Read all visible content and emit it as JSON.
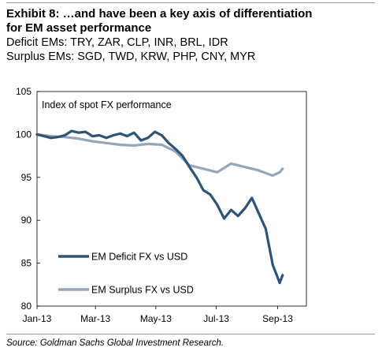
{
  "header": {
    "title_line1": "Exhibit 8: …and have been a key axis of differentiation",
    "title_line2": "for EM asset performance",
    "subtitle_line1": "Deficit EMs: TRY, ZAR, CLP, INR, BRL, IDR",
    "subtitle_line2": "Surplus EMs: SGD, TWD, KRW, PHP, CNY, MYR"
  },
  "footer": {
    "source": "Source: Goldman Sachs Global Investment Research."
  },
  "chart_data": {
    "type": "line",
    "title": "Index of spot FX performance",
    "xlabel": "",
    "ylabel": "",
    "ylim": [
      80,
      105
    ],
    "yticks": [
      80,
      85,
      90,
      95,
      100,
      105
    ],
    "xlim": [
      "2013-01-01",
      "2013-09-30"
    ],
    "xticks": [
      "2013-01-01",
      "2013-03-01",
      "2013-05-01",
      "2013-07-01",
      "2013-09-01"
    ],
    "xtick_labels": [
      "Jan-13",
      "Mar-13",
      "May-13",
      "Jul-13",
      "Sep-13"
    ],
    "grid": false,
    "legend_position": "bottom-left",
    "series": [
      {
        "name": "EM Deficit FX vs USD",
        "color": "#2e5373",
        "x": [
          "2013-01-01",
          "2013-01-08",
          "2013-01-15",
          "2013-01-22",
          "2013-01-29",
          "2013-02-05",
          "2013-02-12",
          "2013-02-19",
          "2013-02-26",
          "2013-03-05",
          "2013-03-12",
          "2013-03-19",
          "2013-03-26",
          "2013-04-02",
          "2013-04-09",
          "2013-04-16",
          "2013-04-23",
          "2013-04-30",
          "2013-05-07",
          "2013-05-14",
          "2013-05-21",
          "2013-05-28",
          "2013-06-04",
          "2013-06-11",
          "2013-06-18",
          "2013-06-25",
          "2013-07-02",
          "2013-07-09",
          "2013-07-16",
          "2013-07-23",
          "2013-07-30",
          "2013-08-06",
          "2013-08-13",
          "2013-08-20",
          "2013-08-27",
          "2013-09-03",
          "2013-09-06"
        ],
        "y": [
          100,
          99.8,
          99.6,
          99.7,
          99.9,
          100.4,
          100.2,
          100.3,
          99.8,
          99.9,
          99.6,
          99.9,
          100.1,
          99.8,
          100.2,
          99.3,
          99.6,
          100.3,
          99.9,
          99.0,
          98.3,
          97.5,
          96.2,
          95.0,
          93.5,
          93.0,
          91.8,
          90.2,
          91.2,
          90.5,
          91.4,
          92.6,
          90.8,
          89.0,
          84.8,
          82.7,
          83.6
        ]
      },
      {
        "name": "EM Surplus FX vs USD",
        "color": "#94a6b7",
        "x": [
          "2013-01-01",
          "2013-01-15",
          "2013-01-29",
          "2013-02-12",
          "2013-02-26",
          "2013-03-12",
          "2013-03-26",
          "2013-04-09",
          "2013-04-23",
          "2013-05-07",
          "2013-05-21",
          "2013-06-04",
          "2013-06-18",
          "2013-07-02",
          "2013-07-16",
          "2013-07-30",
          "2013-08-13",
          "2013-08-27",
          "2013-09-03",
          "2013-09-06"
        ],
        "y": [
          100,
          99.8,
          99.7,
          99.5,
          99.2,
          99.0,
          98.8,
          98.7,
          98.9,
          98.8,
          98.0,
          96.4,
          96.0,
          95.6,
          96.6,
          96.2,
          95.8,
          95.2,
          95.6,
          96.0
        ]
      }
    ]
  }
}
